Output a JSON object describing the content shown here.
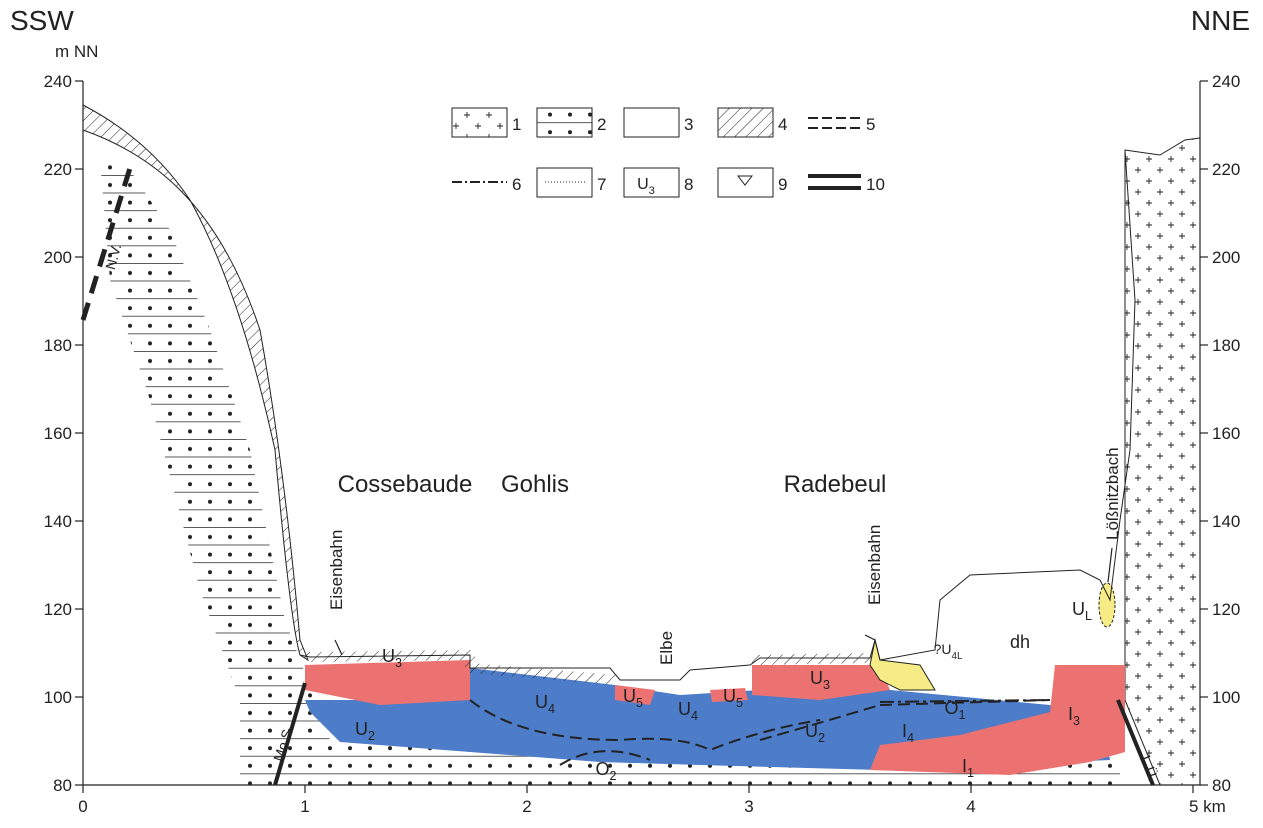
{
  "header": {
    "left": "SSW",
    "right": "NNE",
    "y_unit": "m NN"
  },
  "axes": {
    "xticks": [
      0,
      1,
      2,
      3,
      4,
      {
        "value": 5,
        "label": "5 km"
      }
    ],
    "yticks": [
      80,
      100,
      120,
      140,
      160,
      180,
      200,
      220,
      240
    ]
  },
  "legend": {
    "numbers": [
      "1",
      "2",
      "3",
      "4",
      "5",
      "6",
      "7",
      "8",
      "9",
      "10"
    ],
    "symbol_8": {
      "base": "U",
      "sub": "3"
    }
  },
  "places": [
    "Cossebaude",
    "Gohlis",
    "Radebeul"
  ],
  "features": [
    "Eisenbahn",
    "Elbe",
    "Eisenbahn",
    "Lößnitzbach"
  ],
  "faults": [
    "N.V.",
    "Mo.S.",
    "L.Ü."
  ],
  "units": [
    {
      "base": "U",
      "sub": "3"
    },
    {
      "base": "U",
      "sub": "4"
    },
    {
      "base": "U",
      "sub": "5"
    },
    {
      "base": "U",
      "sub": "4"
    },
    {
      "base": "U",
      "sub": "5"
    },
    {
      "base": "U",
      "sub": "3"
    },
    {
      "base": "U",
      "sub": "2"
    },
    {
      "base": "O",
      "sub": "2"
    },
    {
      "base": "U",
      "sub": "2"
    },
    {
      "base": "I",
      "sub": "4"
    },
    {
      "base": "O",
      "sub": "1"
    },
    {
      "base": "I",
      "sub": "1"
    },
    {
      "base": "I",
      "sub": "3"
    },
    {
      "base": "dh",
      "sub": ""
    },
    {
      "base": "U",
      "sub": "L"
    },
    {
      "base": "?U",
      "sub": "4L"
    }
  ]
}
